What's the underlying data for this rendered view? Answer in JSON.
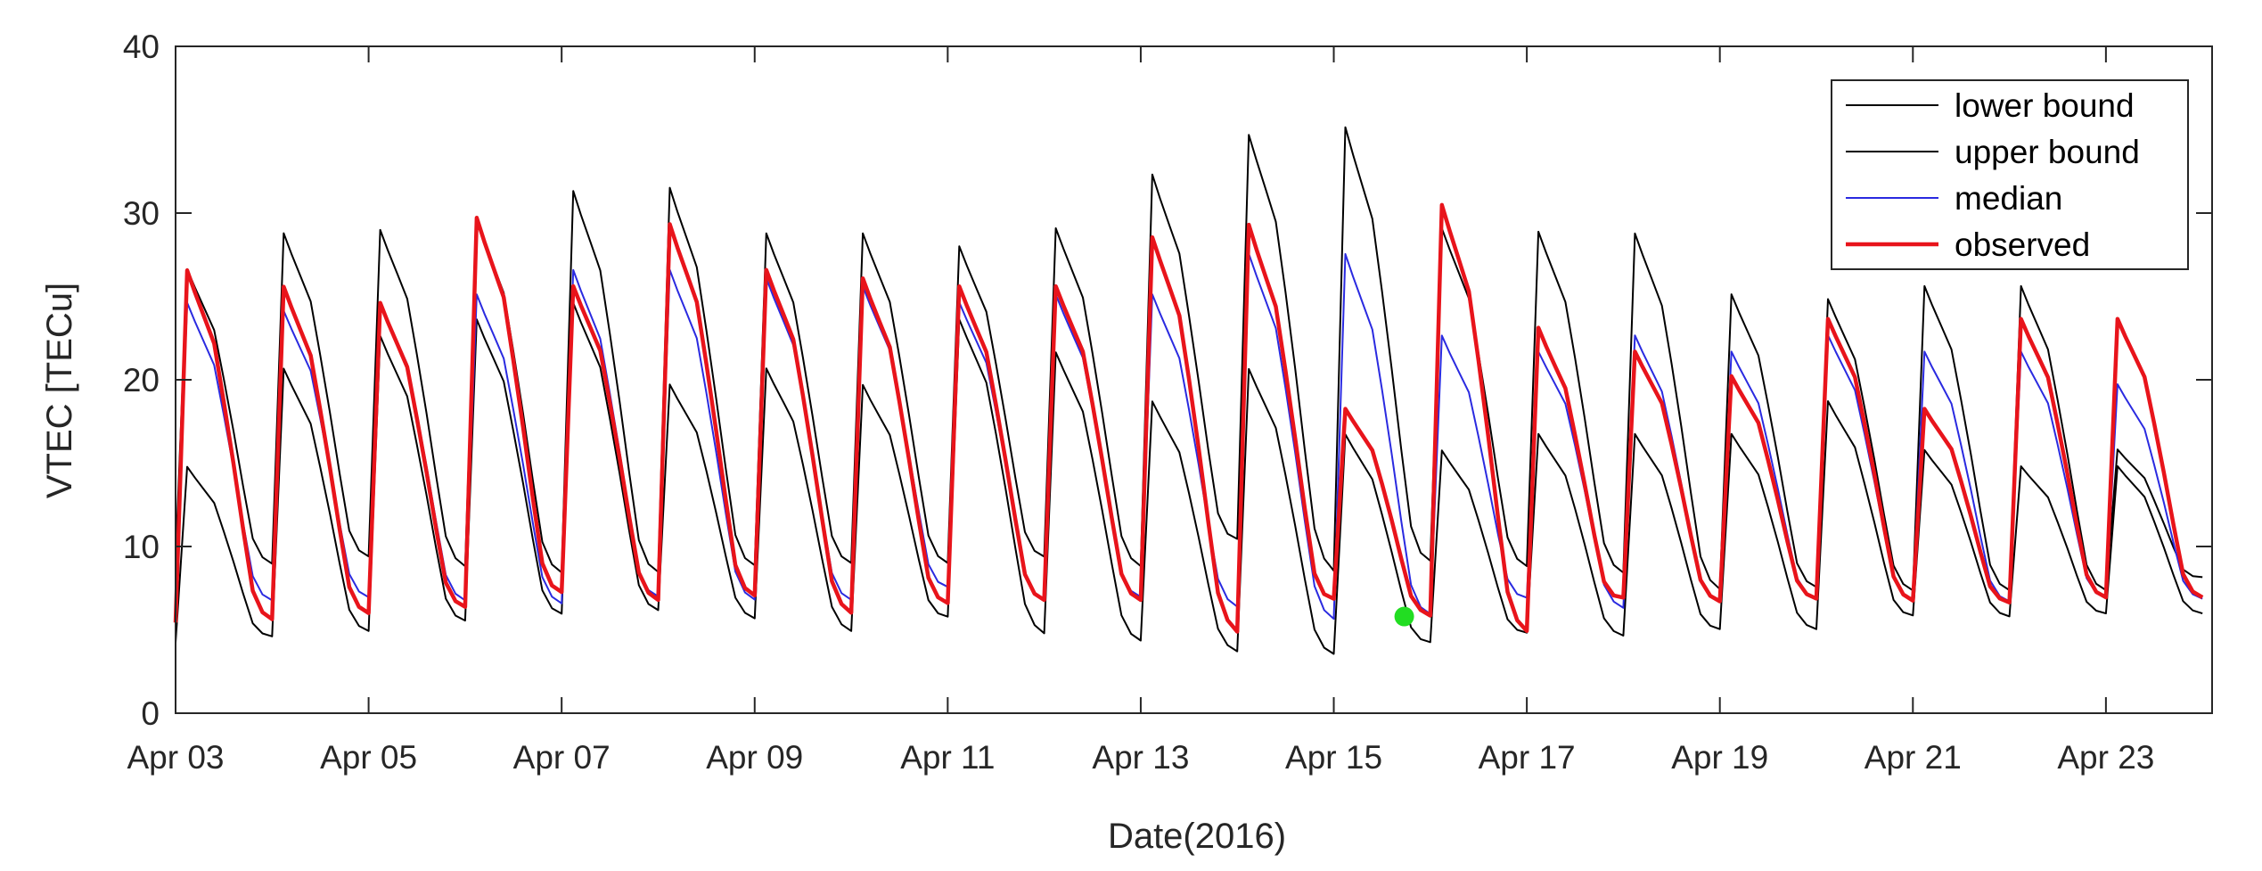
{
  "chart_data": {
    "type": "line",
    "title": "",
    "xlabel": "Date(2016)",
    "ylabel": "VTEC [TECu]",
    "xlim": [
      0,
      21.1
    ],
    "ylim": [
      0,
      40
    ],
    "grid": false,
    "legend_position": "top-right",
    "x_ticks": [
      {
        "value": 0,
        "label": "Apr 03"
      },
      {
        "value": 2,
        "label": "Apr 05"
      },
      {
        "value": 4,
        "label": "Apr 07"
      },
      {
        "value": 6,
        "label": "Apr 09"
      },
      {
        "value": 8,
        "label": "Apr 11"
      },
      {
        "value": 10,
        "label": "Apr 13"
      },
      {
        "value": 12,
        "label": "Apr 15"
      },
      {
        "value": 14,
        "label": "Apr 17"
      },
      {
        "value": 16,
        "label": "Apr 19"
      },
      {
        "value": 18,
        "label": "Apr 21"
      },
      {
        "value": 20,
        "label": "Apr 23"
      }
    ],
    "y_ticks": [
      {
        "value": 0,
        "label": "0"
      },
      {
        "value": 10,
        "label": "10"
      },
      {
        "value": 20,
        "label": "20"
      },
      {
        "value": 30,
        "label": "30"
      },
      {
        "value": 40,
        "label": "40"
      }
    ],
    "day_profile": {
      "x_offsets": [
        0.0,
        0.12,
        0.2,
        0.3,
        0.4,
        0.5,
        0.6,
        0.7,
        0.8,
        0.9,
        1.0
      ],
      "shape": [
        0.02,
        0.98,
        0.92,
        0.85,
        0.78,
        0.62,
        0.45,
        0.27,
        0.1,
        0.04,
        0.02
      ]
    },
    "series": [
      {
        "name": "lower bound",
        "color": "#000000",
        "width": 2,
        "mins": [
          4.0,
          4.4,
          4.6,
          5.2,
          5.6,
          5.8,
          5.4,
          4.6,
          5.5,
          4.4,
          4.0,
          3.4,
          3.2,
          4.0,
          4.6,
          4.4,
          4.8,
          4.8,
          5.6,
          5.6,
          5.8,
          5.8
        ],
        "peaks": [
          15.0,
          21.0,
          23.0,
          24.0,
          25.0,
          20.0,
          21.0,
          20.0,
          24.0,
          22.0,
          19.0,
          21.0,
          17.0,
          16.0,
          17.0,
          17.0,
          17.0,
          19.0,
          16.0,
          15.0,
          15.0
        ]
      },
      {
        "name": "upper bound",
        "color": "#000000",
        "width": 2,
        "mins": [
          8.8,
          8.6,
          9.0,
          8.4,
          8.0,
          8.0,
          8.4,
          8.6,
          8.6,
          9.0,
          8.4,
          10.0,
          8.0,
          8.6,
          8.4,
          8.0,
          7.0,
          7.2,
          7.0,
          7.0,
          7.0,
          8.0
        ],
        "peaks": [
          27.0,
          29.2,
          29.4,
          30.0,
          31.8,
          32.0,
          29.2,
          29.2,
          28.4,
          29.5,
          32.8,
          35.2,
          35.7,
          29.5,
          29.3,
          29.2,
          25.5,
          25.2,
          26.0,
          26.0,
          16.0
        ]
      },
      {
        "name": "median",
        "color": "#2a2ae0",
        "width": 2,
        "mins": [
          6.2,
          6.4,
          6.6,
          6.4,
          6.2,
          6.6,
          6.4,
          6.4,
          7.2,
          6.4,
          6.6,
          6.0,
          5.2,
          5.5,
          6.6,
          6.0,
          6.4,
          6.6,
          6.4,
          6.4,
          6.6,
          6.6
        ],
        "peaks": [
          25.0,
          24.5,
          25.0,
          25.5,
          27.0,
          27.0,
          26.5,
          26.0,
          25.0,
          25.5,
          25.5,
          28.0,
          28.0,
          23.0,
          22.0,
          23.0,
          22.0,
          23.0,
          22.0,
          22.0,
          20.0
        ]
      },
      {
        "name": "observed",
        "color": "#e8141b",
        "width": 4.5,
        "mins": [
          5.0,
          5.2,
          5.6,
          6.0,
          6.8,
          6.4,
          6.6,
          5.6,
          6.2,
          6.4,
          6.4,
          4.4,
          6.4,
          5.6,
          4.4,
          6.6,
          6.4,
          6.6,
          6.4,
          6.4,
          6.6,
          6.6
        ],
        "peaks": [
          27.0,
          26.0,
          25.0,
          30.2,
          26.0,
          29.8,
          27.0,
          26.5,
          26.0,
          26.0,
          29.0,
          29.8,
          18.5,
          31.0,
          23.5,
          22.0,
          20.5,
          24.0,
          18.5,
          24.0,
          24.0
        ]
      }
    ],
    "markers": [
      {
        "name": "event point",
        "x": 12.73,
        "y": 5.8,
        "color": "#22dd22"
      }
    ]
  }
}
